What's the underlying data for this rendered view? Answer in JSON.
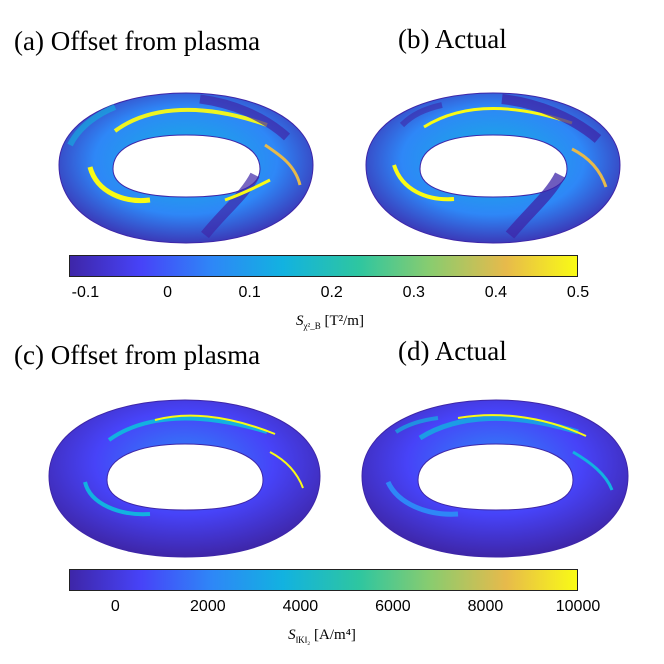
{
  "panels": {
    "a": {
      "title": "(a) Offset from plasma"
    },
    "b": {
      "title": "(b) Actual"
    },
    "c": {
      "title": "(c) Offset from plasma"
    },
    "d": {
      "title": "(d) Actual"
    }
  },
  "colormap": [
    "#3e26a8",
    "#4743f8",
    "#2e87f7",
    "#12b2e0",
    "#2ec6a0",
    "#89cc6f",
    "#e7ba4b",
    "#f9fb15"
  ],
  "colorbar_top": {
    "ticks": [
      "-0.1",
      "0",
      "0.1",
      "0.2",
      "0.3",
      "0.4",
      "0.5"
    ],
    "tick_values": [
      -0.1,
      0,
      0.1,
      0.2,
      0.3,
      0.4,
      0.5
    ],
    "range": [
      -0.12,
      0.5
    ],
    "label_symbol": "S",
    "label_sub": "χ²_B",
    "label_unit": "[T²/m]"
  },
  "colorbar_bottom": {
    "ticks": [
      "0",
      "2000",
      "4000",
      "6000",
      "8000",
      "10000"
    ],
    "tick_values": [
      0,
      2000,
      4000,
      6000,
      8000,
      10000
    ],
    "range": [
      -1000,
      10000
    ],
    "label_symbol": "S",
    "label_sub": "‖K‖₂",
    "label_unit": "[A/m⁴]"
  }
}
